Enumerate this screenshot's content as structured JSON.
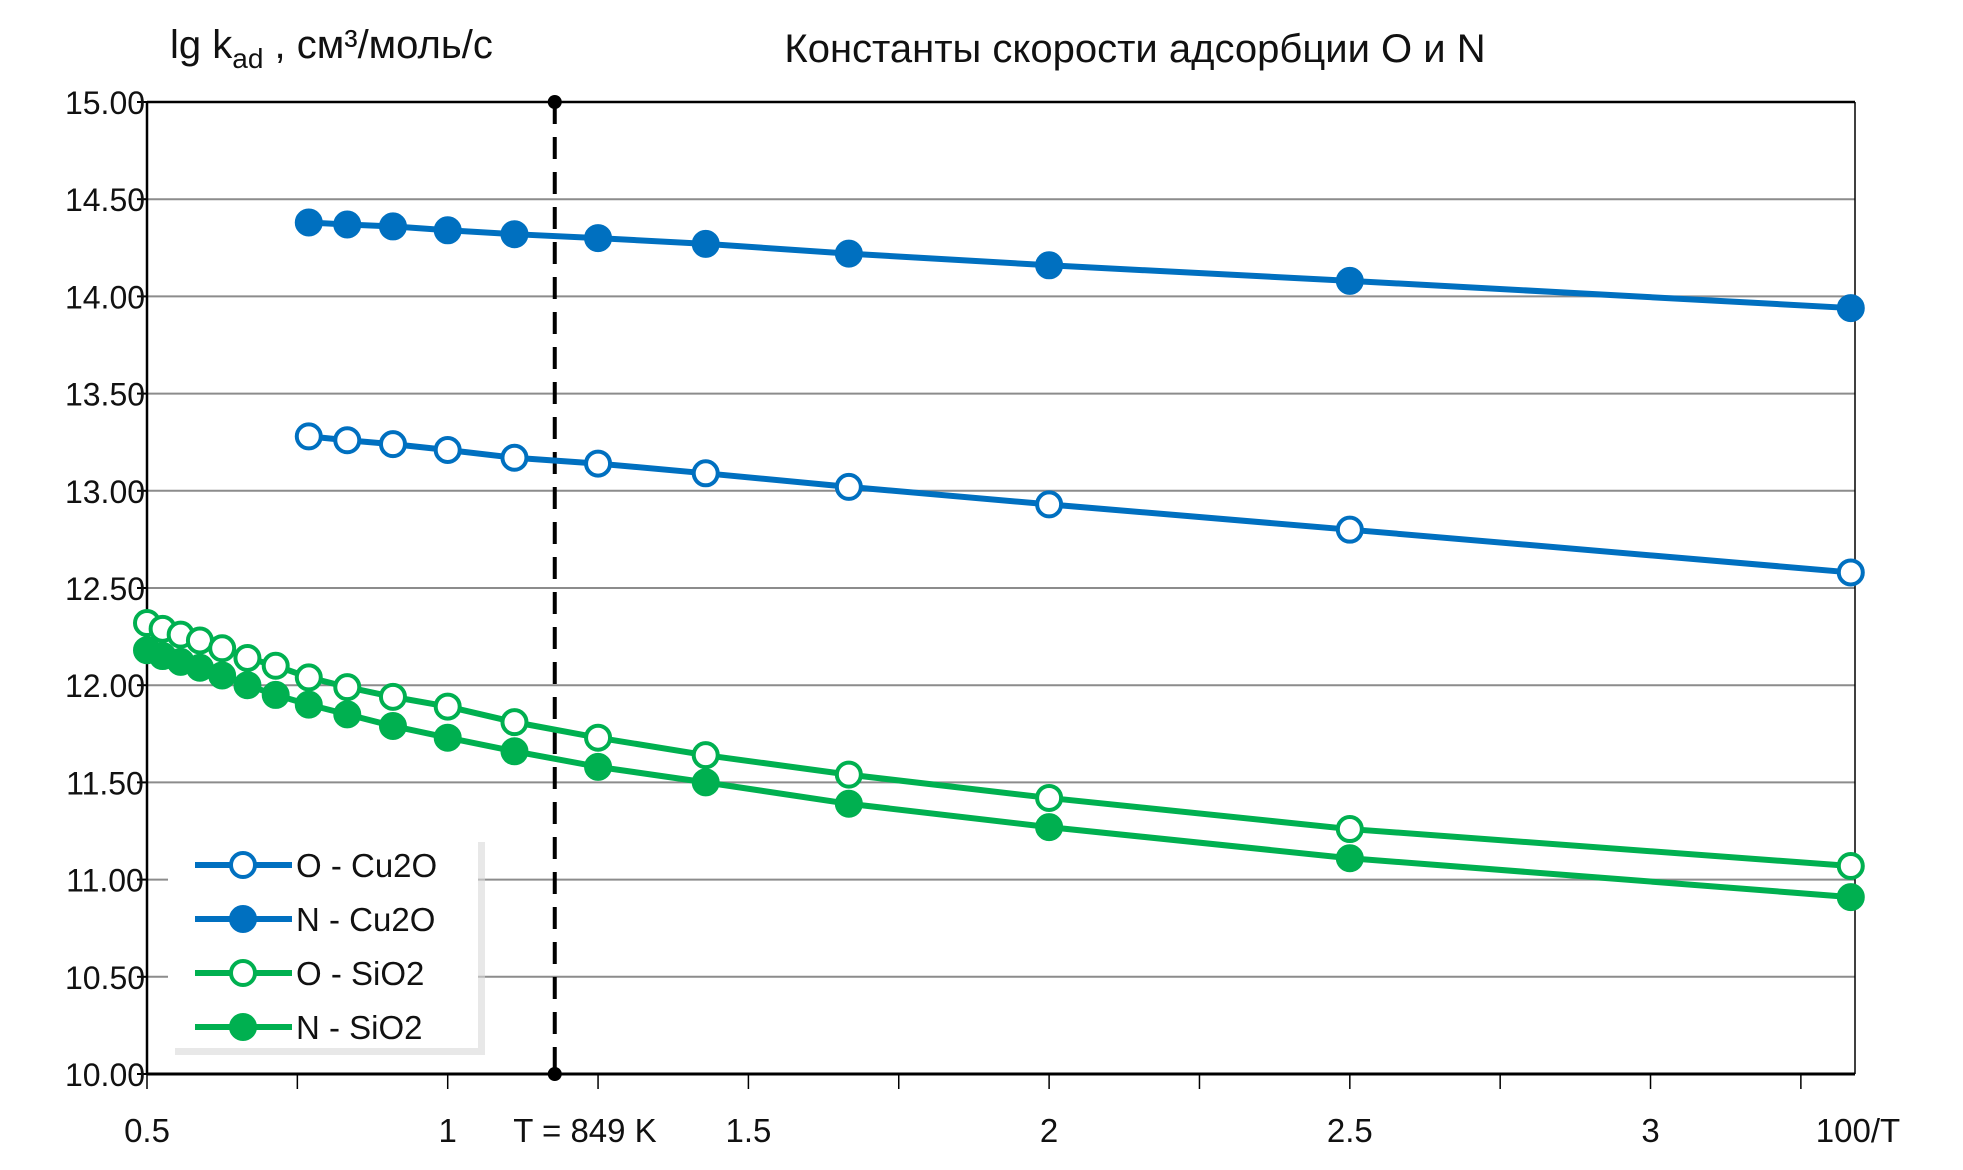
{
  "chart_data": {
    "type": "line",
    "title": "Константы скорости адсорбции O и N",
    "ylabel_main": "lg k",
    "ylabel_sub": "ad",
    "ylabel_units": " , см³/моль/с",
    "xlabel": "100/T",
    "xlim": [
      0.5,
      3.34
    ],
    "ylim": [
      10,
      15
    ],
    "xticks": [
      0.5,
      1,
      1.5,
      2,
      2.5,
      3
    ],
    "xtick_labels": [
      "0.5",
      "1",
      "1.5",
      "2",
      "2.5",
      "3"
    ],
    "yticks": [
      10,
      10.5,
      11,
      11.5,
      12,
      12.5,
      13,
      13.5,
      14,
      14.5,
      15
    ],
    "ytick_labels": [
      "10.00",
      "10.50",
      "11.00",
      "11.50",
      "12.00",
      "12.50",
      "13.00",
      "13.50",
      "14.00",
      "14.50",
      "15.00"
    ],
    "grid": "horizontal",
    "legend_position": "bottom-left",
    "annotation": {
      "x": 1.178,
      "label": "T = 849 K"
    },
    "series": [
      {
        "name": "O - Cu2O",
        "color": "#0070C0",
        "filled": false,
        "x": [
          0.769,
          0.833,
          0.909,
          1,
          1.111,
          1.25,
          1.429,
          1.667,
          2,
          2.5,
          3.333
        ],
        "y": [
          13.28,
          13.26,
          13.24,
          13.21,
          13.17,
          13.14,
          13.09,
          13.02,
          12.93,
          12.8,
          12.58
        ]
      },
      {
        "name": "N - Cu2O",
        "color": "#0070C0",
        "filled": true,
        "x": [
          0.769,
          0.833,
          0.909,
          1,
          1.111,
          1.25,
          1.429,
          1.667,
          2,
          2.5,
          3.333
        ],
        "y": [
          14.38,
          14.37,
          14.36,
          14.34,
          14.32,
          14.3,
          14.27,
          14.22,
          14.16,
          14.08,
          13.94
        ]
      },
      {
        "name": "O - SiO2",
        "color": "#00B050",
        "filled": false,
        "x": [
          0.5,
          0.526,
          0.556,
          0.588,
          0.625,
          0.667,
          0.714,
          0.769,
          0.833,
          0.909,
          1,
          1.111,
          1.25,
          1.429,
          1.667,
          2,
          2.5,
          3.333
        ],
        "y": [
          12.32,
          12.29,
          12.26,
          12.23,
          12.19,
          12.14,
          12.1,
          12.04,
          11.99,
          11.94,
          11.89,
          11.81,
          11.73,
          11.64,
          11.54,
          11.42,
          11.26,
          11.07
        ]
      },
      {
        "name": "N - SiO2",
        "color": "#00B050",
        "filled": true,
        "x": [
          0.5,
          0.526,
          0.556,
          0.588,
          0.625,
          0.667,
          0.714,
          0.769,
          0.833,
          0.909,
          1,
          1.111,
          1.25,
          1.429,
          1.667,
          2,
          2.5,
          3.333
        ],
        "y": [
          12.18,
          12.15,
          12.12,
          12.09,
          12.05,
          12.0,
          11.95,
          11.9,
          11.85,
          11.79,
          11.73,
          11.66,
          11.58,
          11.5,
          11.39,
          11.27,
          11.11,
          10.91
        ]
      }
    ]
  }
}
